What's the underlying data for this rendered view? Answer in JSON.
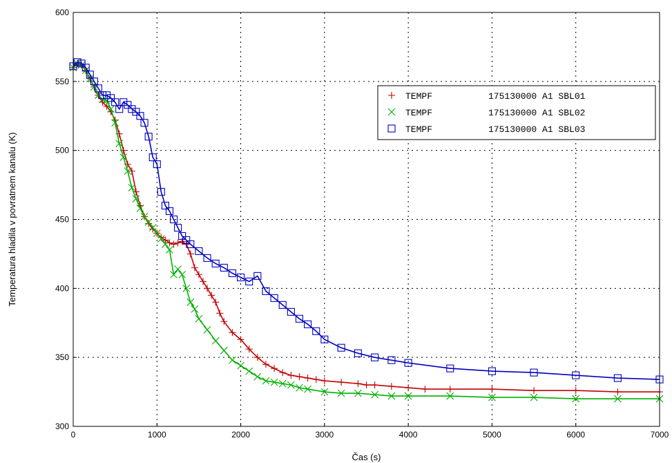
{
  "chart_data": {
    "type": "line",
    "title": "",
    "xlabel": "Čas (s)",
    "ylabel": "Temperatura hladila v povratnem kanalu (K)",
    "xlim": [
      0,
      7000
    ],
    "ylim": [
      300,
      600
    ],
    "xticks": [
      "0",
      "1000",
      "2000",
      "3000",
      "4000",
      "5000",
      "6000",
      "7000"
    ],
    "yticks": [
      "300",
      "350",
      "400",
      "450",
      "500",
      "550",
      "600"
    ],
    "grid": true,
    "legend_position": "top-right",
    "series": [
      {
        "name": "TEMPF        175130000 A1 SBL01",
        "label_var": "TEMPF",
        "label_id": "175130000 A1 SBL01",
        "color": "#c00000",
        "marker": "plus",
        "x": [
          0,
          50,
          100,
          150,
          200,
          250,
          300,
          350,
          400,
          450,
          500,
          550,
          600,
          650,
          700,
          750,
          800,
          850,
          900,
          950,
          1000,
          1050,
          1100,
          1150,
          1200,
          1250,
          1300,
          1350,
          1400,
          1450,
          1500,
          1550,
          1600,
          1650,
          1700,
          1750,
          1800,
          1900,
          2000,
          2100,
          2200,
          2300,
          2400,
          2500,
          2600,
          2700,
          2800,
          2900,
          3000,
          3200,
          3400,
          3500,
          3600,
          3800,
          4000,
          4200,
          4500,
          5000,
          5500,
          6000,
          6500,
          7000
        ],
        "y": [
          560,
          563,
          562,
          558,
          552,
          546,
          540,
          535,
          532,
          528,
          522,
          512,
          500,
          490,
          485,
          470,
          460,
          452,
          447,
          443,
          440,
          437,
          435,
          433,
          432,
          433,
          434,
          432,
          425,
          415,
          410,
          405,
          400,
          395,
          390,
          382,
          376,
          368,
          363,
          356,
          350,
          345,
          342,
          339,
          337,
          336,
          335,
          334,
          333,
          332,
          331,
          330,
          330,
          329,
          328,
          327,
          327,
          327,
          326,
          326,
          325,
          325
        ]
      },
      {
        "name": "TEMPF        175130000 A1 SBL02",
        "label_var": "TEMPF",
        "label_id": "175130000 A1 SBL02",
        "color": "#00b000",
        "marker": "x",
        "x": [
          0,
          50,
          100,
          150,
          200,
          250,
          300,
          350,
          400,
          450,
          500,
          550,
          600,
          650,
          700,
          750,
          800,
          850,
          900,
          950,
          1000,
          1050,
          1100,
          1150,
          1200,
          1250,
          1300,
          1350,
          1400,
          1450,
          1500,
          1600,
          1700,
          1800,
          1900,
          2000,
          2100,
          2200,
          2300,
          2400,
          2500,
          2600,
          2700,
          2800,
          3000,
          3200,
          3400,
          3600,
          3800,
          4000,
          4500,
          5000,
          5500,
          6000,
          6500,
          7000
        ],
        "y": [
          560,
          563,
          562,
          558,
          552,
          546,
          540,
          537,
          536,
          530,
          520,
          505,
          495,
          485,
          473,
          465,
          458,
          452,
          448,
          444,
          440,
          436,
          432,
          428,
          410,
          414,
          410,
          400,
          390,
          385,
          378,
          370,
          362,
          355,
          348,
          344,
          340,
          336,
          333,
          332,
          331,
          330,
          328,
          327,
          325,
          324,
          324,
          323,
          322,
          322,
          322,
          321,
          321,
          320,
          320,
          320
        ]
      },
      {
        "name": "TEMPF        175130000 A1 SBL03",
        "label_var": "TEMPF",
        "label_id": "175130000 A1 SBL03",
        "color": "#0000c0",
        "marker": "square",
        "x": [
          0,
          50,
          100,
          150,
          200,
          250,
          300,
          350,
          400,
          450,
          500,
          550,
          600,
          650,
          700,
          750,
          800,
          850,
          900,
          950,
          1000,
          1050,
          1100,
          1150,
          1200,
          1250,
          1300,
          1350,
          1400,
          1500,
          1600,
          1700,
          1800,
          1900,
          2000,
          2100,
          2200,
          2300,
          2400,
          2500,
          2600,
          2700,
          2800,
          2900,
          3000,
          3200,
          3400,
          3600,
          3800,
          4000,
          4500,
          5000,
          5500,
          6000,
          6500,
          7000
        ],
        "y": [
          561,
          564,
          563,
          560,
          555,
          550,
          545,
          540,
          540,
          538,
          535,
          530,
          535,
          533,
          530,
          528,
          525,
          520,
          510,
          495,
          490,
          470,
          460,
          456,
          450,
          444,
          438,
          435,
          432,
          427,
          422,
          418,
          415,
          411,
          408,
          405,
          409,
          398,
          393,
          388,
          383,
          378,
          374,
          369,
          363,
          357,
          353,
          350,
          348,
          346,
          342,
          340,
          339,
          337,
          335,
          334
        ]
      }
    ]
  }
}
